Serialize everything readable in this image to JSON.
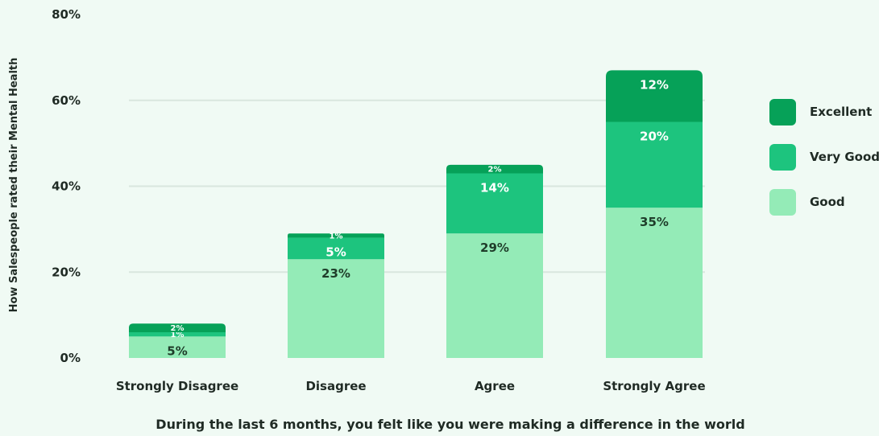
{
  "chart_data": {
    "type": "bar",
    "stacked": true,
    "title": "",
    "xlabel": "During the last 6 months, you felt like you were making a difference in the world",
    "ylabel": "How Salespeople rated their Mental Health",
    "ylim": [
      0,
      80
    ],
    "yticks": [
      0,
      20,
      40,
      60,
      80
    ],
    "ytick_labels": [
      "0%",
      "20%",
      "40%",
      "60%",
      "80%"
    ],
    "grid": true,
    "legend_position": "right",
    "categories": [
      "Strongly Disagree",
      "Disagree",
      "Agree",
      "Strongly Agree"
    ],
    "series": [
      {
        "name": "Good",
        "values": [
          5,
          23,
          29,
          35
        ],
        "labels": [
          "5%",
          "23%",
          "29%",
          "35%"
        ],
        "color": "#94ebb7",
        "label_color": "#1f3d2a"
      },
      {
        "name": "Very Good",
        "values": [
          1,
          5,
          14,
          20
        ],
        "labels": [
          "1%",
          "5%",
          "14%",
          "20%"
        ],
        "color": "#1dc47e",
        "label_color": "#ffffff"
      },
      {
        "name": "Excellent",
        "values": [
          2,
          1,
          2,
          12
        ],
        "labels": [
          "2%",
          "1%",
          "2%",
          "12%"
        ],
        "color": "#06a158",
        "label_color": "#ffffff"
      }
    ],
    "legend_order": [
      "Excellent",
      "Very Good",
      "Good"
    ]
  }
}
